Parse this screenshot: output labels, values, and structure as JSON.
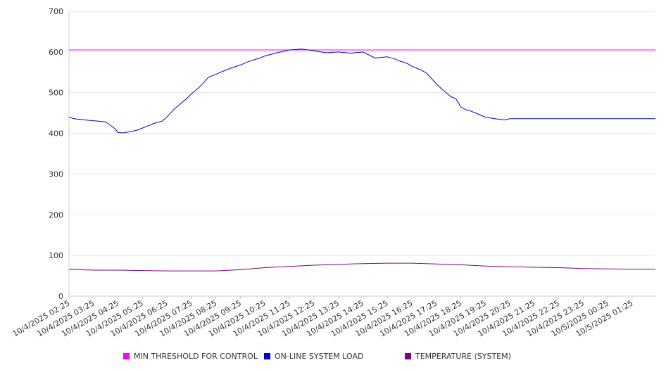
{
  "chart_data": {
    "type": "line",
    "title": "",
    "xlabel": "",
    "ylabel": "",
    "ylim": [
      0,
      700
    ],
    "yticks": [
      0,
      100,
      200,
      300,
      400,
      500,
      600,
      700
    ],
    "grid": true,
    "legend_position": "bottom",
    "x_tick_labels": [
      "10/4/2025 02:25",
      "10/4/2025 03:25",
      "10/4/2025 04:25",
      "10/4/2025 05:25",
      "10/4/2025 06:25",
      "10/4/2025 07:25",
      "10/4/2025 08:25",
      "10/4/2025 09:25",
      "10/4/2025 10:25",
      "10/4/2025 11:25",
      "10/4/2025 12:25",
      "10/4/2025 13:25",
      "10/4/2025 14:25",
      "10/4/2025 15:25",
      "10/4/2025 16:25",
      "10/4/2025 17:25",
      "10/4/2025 18:25",
      "10/4/2025 19:25",
      "10/4/2025 20:25",
      "10/4/2025 21:25",
      "10/4/2025 22:25",
      "10/4/2025 23:25",
      "10/5/2025 00:25",
      "10/5/2025 01:25"
    ],
    "x_hours": [
      0,
      1,
      2,
      3,
      4,
      5,
      6,
      7,
      8,
      9,
      10,
      11,
      12,
      13,
      14,
      15,
      16,
      17,
      18,
      19,
      20,
      21,
      22,
      23
    ],
    "x_range_hours": [
      0,
      23.95
    ],
    "series": [
      {
        "name": "MIN THRESHOLD FOR CONTROL",
        "color": "#ff00ff",
        "x": [
          0,
          23.95
        ],
        "values": [
          605,
          605
        ]
      },
      {
        "name": "ON-LINE SYSTEM LOAD",
        "color": "#0000cc",
        "x": [
          0,
          0.15,
          0.3,
          0.5,
          0.8,
          1.0,
          1.2,
          1.5,
          1.8,
          1.9,
          2.0,
          2.2,
          2.5,
          2.8,
          3.0,
          3.2,
          3.5,
          3.8,
          4.0,
          4.3,
          4.5,
          4.8,
          5.0,
          5.3,
          5.5,
          5.7,
          6.0,
          6.3,
          6.6,
          7.0,
          7.4,
          7.8,
          8.0,
          8.5,
          9.0,
          9.5,
          10.0,
          10.5,
          11.0,
          11.5,
          12.0,
          12.5,
          13.0,
          13.3,
          13.5,
          13.8,
          14.0,
          14.2,
          14.4,
          14.6,
          14.8,
          15.0,
          15.2,
          15.4,
          15.6,
          15.8,
          16.0,
          16.2,
          16.4,
          16.6,
          16.8,
          17.0,
          17.3,
          17.5,
          17.8,
          18.0,
          18.3,
          18.6,
          19.0,
          19.3,
          19.6,
          19.8,
          20.0,
          20.2,
          20.4,
          20.6,
          20.8,
          21.0,
          21.3,
          21.5,
          21.8,
          22.0,
          22.3,
          22.6,
          22.9,
          23.0,
          23.2,
          23.4,
          23.6,
          23.8,
          23.95
        ],
        "values": [
          440,
          437,
          435,
          434,
          432,
          431,
          430,
          428,
          415,
          410,
          402,
          401,
          404,
          408,
          413,
          418,
          425,
          430,
          440,
          460,
          470,
          485,
          497,
          512,
          525,
          538,
          545,
          553,
          560,
          568,
          578,
          585,
          590,
          598,
          605,
          607,
          603,
          598,
          600,
          597,
          600,
          585,
          588,
          583,
          578,
          572,
          565,
          560,
          555,
          548,
          535,
          522,
          510,
          500,
          490,
          485,
          465,
          458,
          455,
          450,
          445,
          440,
          437,
          435,
          433,
          436,
          436,
          436,
          436,
          436,
          436,
          436,
          436,
          436,
          436,
          436,
          436,
          436,
          436,
          436,
          436,
          436,
          436,
          436,
          436,
          436,
          436,
          436,
          436,
          436,
          436
        ]
      },
      {
        "name": "TEMPERATURE (SYSTEM)",
        "color": "#800080",
        "x": [
          0,
          1,
          2,
          3,
          4,
          5,
          6,
          7,
          8,
          9,
          10,
          11,
          12,
          13,
          14,
          15,
          16,
          17,
          18,
          19,
          20,
          21,
          22,
          23,
          23.95
        ],
        "values": [
          66,
          64,
          64,
          63,
          62,
          62,
          62,
          65,
          70,
          73,
          76,
          78,
          80,
          81,
          81,
          79,
          77,
          74,
          72,
          71,
          70,
          68,
          67,
          66,
          66
        ]
      }
    ]
  }
}
